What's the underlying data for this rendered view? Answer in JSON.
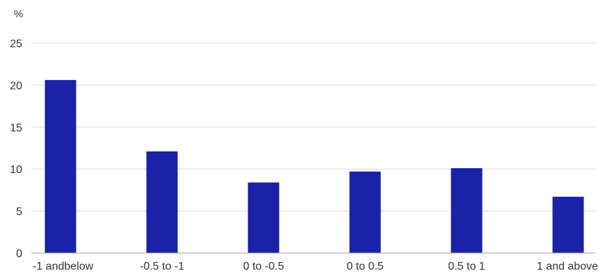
{
  "chart_data": {
    "type": "bar",
    "title": "",
    "ylabel": "%",
    "xlabel": "",
    "categories": [
      "-1 andbelow",
      "-0.5 to -1",
      "0 to -0.5",
      "0 to 0.5",
      "0.5 to 1",
      "1 and above"
    ],
    "values": [
      20.6,
      12.1,
      8.4,
      9.7,
      10.1,
      6.7
    ],
    "ylim": [
      0,
      25
    ],
    "yticks": [
      "0",
      "5",
      "10",
      "15",
      "20",
      "25"
    ],
    "grid": true,
    "legend": "none",
    "bar_color": "#1a22a8"
  }
}
